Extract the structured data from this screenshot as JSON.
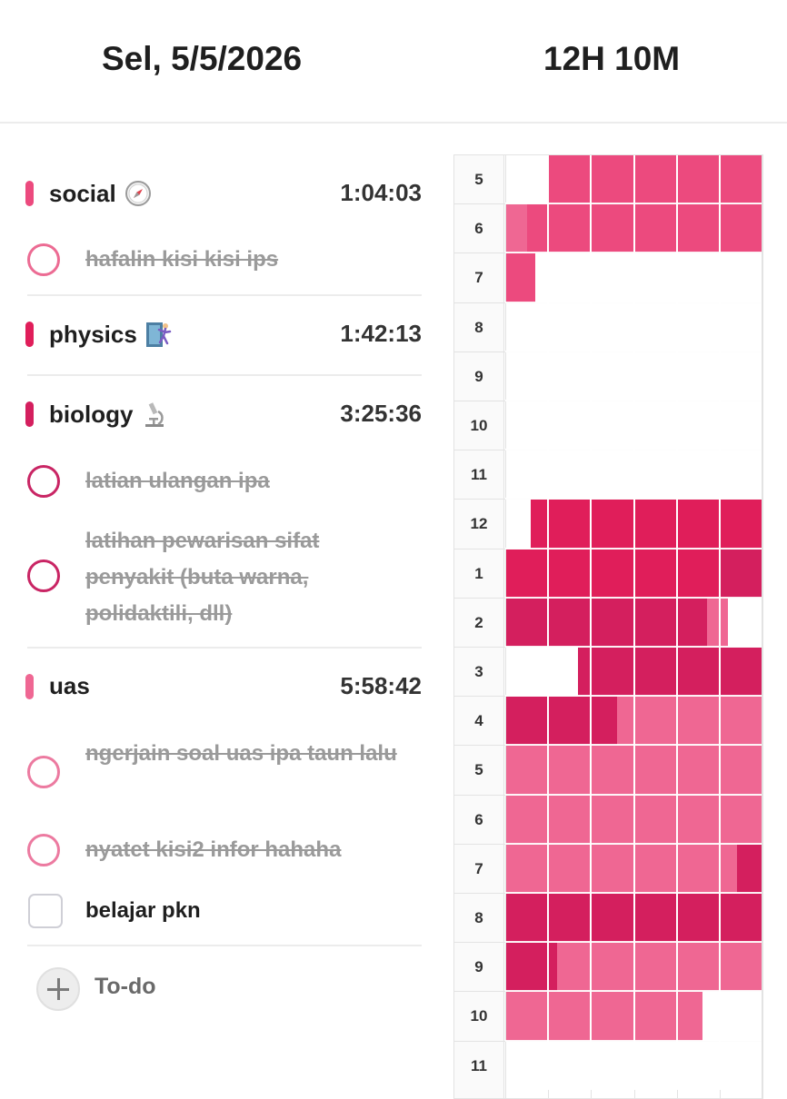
{
  "header": {
    "date": "Sel, 5/5/2026",
    "total_time": "12H 10M"
  },
  "colors": {
    "social": "#ec4a7e",
    "physics": "#e01e5a",
    "biology": "#d41f5e",
    "uas": "#ef6793",
    "done_text": "#9a9a9a",
    "grid_line": "#e3e3e3"
  },
  "subjects": [
    {
      "name": "social",
      "icon": "compass-icon",
      "time": "1:04:03",
      "tasks": [
        "hafalin kisi kisi ips"
      ]
    },
    {
      "name": "physics",
      "icon": "climber-icon",
      "time": "1:42:13",
      "tasks": []
    },
    {
      "name": "biology",
      "icon": "microscope-icon",
      "time": "3:25:36",
      "tasks": [
        "latian ulangan ipa",
        "latihan pewarisan sifat penyakit (buta warna, polidaktili, dll)"
      ]
    },
    {
      "name": "uas",
      "icon": "",
      "time": "5:58:42",
      "tasks": [
        "ngerjain soal uas ipa taun lalu",
        "nyatet kisi2 infor hahaha"
      ]
    }
  ],
  "open_tasks": [
    "belajar pkn"
  ],
  "add_todo_label": "To-do",
  "timetable": {
    "hours": [
      "5",
      "6",
      "7",
      "8",
      "9",
      "10",
      "11",
      "12",
      "1",
      "2",
      "3",
      "4",
      "5",
      "6",
      "7",
      "8",
      "9",
      "10",
      "11"
    ],
    "studied": [
      {
        "hour_index": 0,
        "from_min": 10,
        "to_min": 60,
        "subject": "social"
      },
      {
        "hour_index": 1,
        "from_min": 0,
        "to_min": 5,
        "subject": "uas"
      },
      {
        "hour_index": 1,
        "from_min": 5,
        "to_min": 60,
        "subject": "social"
      },
      {
        "hour_index": 2,
        "from_min": 0,
        "to_min": 7,
        "subject": "social"
      },
      {
        "hour_index": 7,
        "from_min": 6,
        "to_min": 60,
        "subject": "physics"
      },
      {
        "hour_index": 8,
        "from_min": 0,
        "to_min": 50,
        "subject": "physics"
      },
      {
        "hour_index": 8,
        "from_min": 50,
        "to_min": 60,
        "subject": "biology"
      },
      {
        "hour_index": 9,
        "from_min": 0,
        "to_min": 47,
        "subject": "biology"
      },
      {
        "hour_index": 9,
        "from_min": 47,
        "to_min": 52,
        "subject": "uas"
      },
      {
        "hour_index": 10,
        "from_min": 17,
        "to_min": 60,
        "subject": "biology"
      },
      {
        "hour_index": 11,
        "from_min": 0,
        "to_min": 26,
        "subject": "biology"
      },
      {
        "hour_index": 11,
        "from_min": 26,
        "to_min": 60,
        "subject": "uas"
      },
      {
        "hour_index": 12,
        "from_min": 0,
        "to_min": 60,
        "subject": "uas"
      },
      {
        "hour_index": 13,
        "from_min": 0,
        "to_min": 60,
        "subject": "uas"
      },
      {
        "hour_index": 14,
        "from_min": 0,
        "to_min": 54,
        "subject": "uas"
      },
      {
        "hour_index": 14,
        "from_min": 54,
        "to_min": 60,
        "subject": "biology"
      },
      {
        "hour_index": 15,
        "from_min": 0,
        "to_min": 60,
        "subject": "biology"
      },
      {
        "hour_index": 16,
        "from_min": 0,
        "to_min": 12,
        "subject": "biology"
      },
      {
        "hour_index": 16,
        "from_min": 12,
        "to_min": 60,
        "subject": "uas"
      },
      {
        "hour_index": 17,
        "from_min": 0,
        "to_min": 46,
        "subject": "uas"
      }
    ]
  }
}
